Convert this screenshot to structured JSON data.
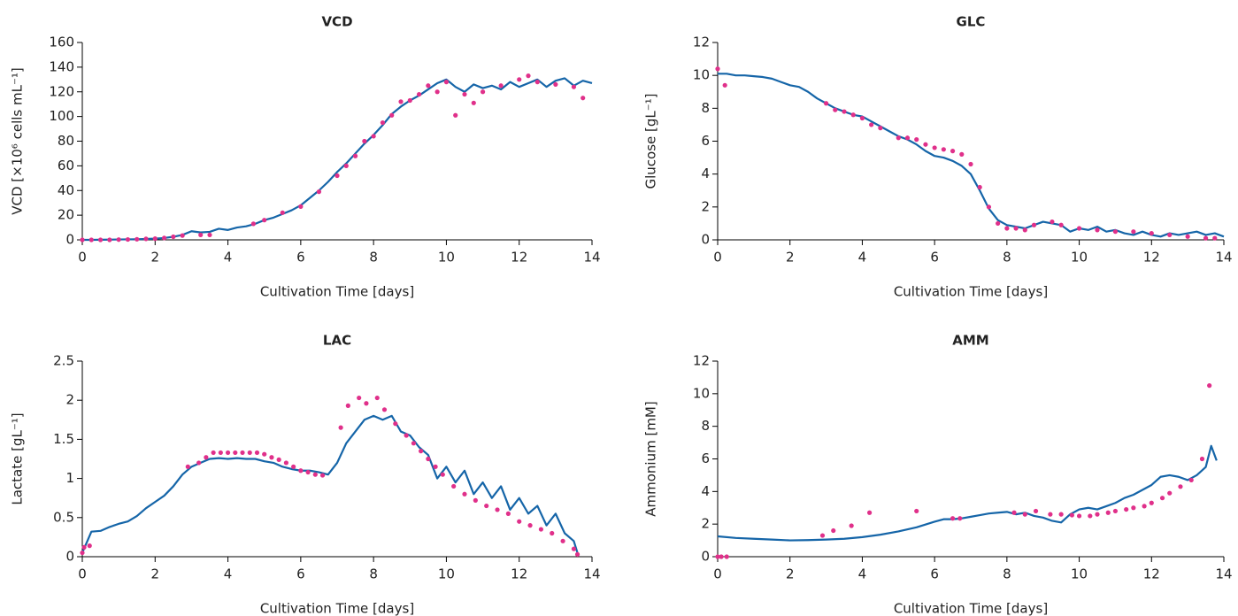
{
  "chart_data": [
    {
      "type": "line",
      "title": "VCD",
      "x_label": "Cultivation Time [days]",
      "y_label": "VCD [×10⁶ cells mL⁻¹]",
      "xlim": [
        0,
        14
      ],
      "xticks": [
        0,
        2,
        4,
        6,
        8,
        10,
        12,
        14
      ],
      "ylim": [
        0,
        160
      ],
      "yticks": [
        0,
        20,
        40,
        60,
        80,
        100,
        120,
        140,
        160
      ],
      "series": [
        {
          "type": "line",
          "color": "#1565a8",
          "x": [
            0,
            0.25,
            0.5,
            0.75,
            1,
            1.25,
            1.5,
            1.75,
            2,
            2.25,
            2.5,
            2.75,
            3,
            3.25,
            3.5,
            3.75,
            4,
            4.25,
            4.5,
            4.75,
            5,
            5.25,
            5.5,
            5.75,
            6,
            6.25,
            6.5,
            6.75,
            7,
            7.25,
            7.5,
            7.75,
            8,
            8.25,
            8.5,
            8.75,
            9,
            9.25,
            9.5,
            9.75,
            10,
            10.25,
            10.5,
            10.75,
            11,
            11.25,
            11.5,
            11.75,
            12,
            12.25,
            12.5,
            12.75,
            13,
            13.25,
            13.5,
            13.75,
            14
          ],
          "values": [
            0,
            0,
            0.1,
            0.2,
            0.3,
            0.4,
            0.5,
            0.7,
            1,
            1.5,
            2.5,
            4,
            7,
            6,
            6.5,
            9,
            8,
            10,
            11,
            13,
            16,
            18,
            21,
            24,
            28,
            34,
            40,
            47,
            55,
            62,
            70,
            78,
            85,
            93,
            102,
            108,
            113,
            117,
            122,
            127,
            130,
            124,
            120,
            126,
            123,
            125,
            122,
            128,
            124,
            127,
            130,
            124,
            129,
            131,
            125,
            129,
            127
          ]
        },
        {
          "type": "scatter",
          "color": "#e0308a",
          "x": [
            0,
            0.25,
            0.5,
            0.75,
            1,
            1.25,
            1.5,
            1.75,
            2,
            2.25,
            2.5,
            2.75,
            3.25,
            3.5,
            4.7,
            5,
            5.5,
            6,
            6.5,
            7,
            7.25,
            7.5,
            7.75,
            8,
            8.25,
            8.5,
            8.75,
            9,
            9.25,
            9.5,
            9.75,
            10,
            10.25,
            10.5,
            10.75,
            11,
            11.5,
            12,
            12.25,
            12.5,
            13,
            13.5,
            13.75
          ],
          "values": [
            0,
            0,
            0,
            0,
            0.2,
            0.3,
            0.5,
            0.8,
            1,
            1.5,
            2.5,
            3.5,
            4,
            4,
            13,
            16,
            22,
            27,
            39,
            52,
            60,
            68,
            80,
            84,
            95,
            101,
            112,
            113,
            118,
            125,
            120,
            128,
            101,
            118,
            111,
            120,
            125,
            130,
            133,
            128,
            126,
            124,
            115
          ]
        }
      ]
    },
    {
      "type": "line",
      "title": "GLC",
      "x_label": "Cultivation Time [days]",
      "y_label": "Glucose [gL⁻¹]",
      "xlim": [
        0,
        14
      ],
      "xticks": [
        0,
        2,
        4,
        6,
        8,
        10,
        12,
        14
      ],
      "ylim": [
        0,
        12
      ],
      "yticks": [
        0,
        2,
        4,
        6,
        8,
        10,
        12
      ],
      "series": [
        {
          "type": "line",
          "color": "#1565a8",
          "x": [
            0,
            0.25,
            0.5,
            0.75,
            1,
            1.25,
            1.5,
            1.75,
            2,
            2.25,
            2.5,
            2.75,
            3,
            3.25,
            3.5,
            3.75,
            4,
            4.25,
            4.5,
            4.75,
            5,
            5.25,
            5.5,
            5.75,
            6,
            6.25,
            6.5,
            6.75,
            7,
            7.25,
            7.5,
            7.75,
            8,
            8.25,
            8.5,
            8.75,
            9,
            9.25,
            9.5,
            9.75,
            10,
            10.25,
            10.5,
            10.75,
            11,
            11.25,
            11.5,
            11.75,
            12,
            12.25,
            12.5,
            12.75,
            13,
            13.25,
            13.5,
            13.75,
            14
          ],
          "values": [
            10.1,
            10.1,
            10.0,
            10.0,
            9.95,
            9.9,
            9.8,
            9.6,
            9.4,
            9.3,
            9.0,
            8.6,
            8.3,
            8.0,
            7.8,
            7.6,
            7.5,
            7.2,
            6.9,
            6.6,
            6.3,
            6.1,
            5.8,
            5.4,
            5.1,
            5.0,
            4.8,
            4.5,
            4.0,
            3.0,
            1.9,
            1.2,
            0.9,
            0.8,
            0.7,
            0.9,
            1.1,
            1.0,
            0.9,
            0.5,
            0.7,
            0.6,
            0.8,
            0.5,
            0.6,
            0.4,
            0.3,
            0.5,
            0.3,
            0.2,
            0.4,
            0.3,
            0.4,
            0.5,
            0.3,
            0.4,
            0.2
          ]
        },
        {
          "type": "scatter",
          "color": "#e0308a",
          "x": [
            0,
            0.2,
            3,
            3.25,
            3.5,
            3.75,
            4,
            4.25,
            4.5,
            5,
            5.25,
            5.5,
            5.75,
            6,
            6.25,
            6.5,
            6.75,
            7,
            7.25,
            7.5,
            7.75,
            8,
            8.25,
            8.5,
            8.75,
            9.25,
            9.5,
            10,
            10.5,
            11,
            11.5,
            12,
            12.5,
            13,
            13.5,
            13.75
          ],
          "values": [
            10.4,
            9.4,
            8.3,
            7.9,
            7.8,
            7.6,
            7.4,
            7.0,
            6.8,
            6.2,
            6.2,
            6.1,
            5.8,
            5.6,
            5.5,
            5.4,
            5.2,
            4.6,
            3.2,
            2.0,
            1.0,
            0.7,
            0.7,
            0.6,
            0.9,
            1.1,
            0.9,
            0.7,
            0.6,
            0.5,
            0.5,
            0.4,
            0.3,
            0.2,
            0.1,
            0.1
          ]
        }
      ]
    },
    {
      "type": "line",
      "title": "LAC",
      "x_label": "Cultivation Time [days]",
      "y_label": "Lactate [gL⁻¹]",
      "xlim": [
        0,
        14
      ],
      "xticks": [
        0,
        2,
        4,
        6,
        8,
        10,
        12,
        14
      ],
      "ylim": [
        0,
        2.5
      ],
      "yticks": [
        0,
        0.5,
        1,
        1.5,
        2,
        2.5
      ],
      "series": [
        {
          "type": "line",
          "color": "#1565a8",
          "x": [
            0,
            0.25,
            0.5,
            0.75,
            1,
            1.25,
            1.5,
            1.75,
            2,
            2.25,
            2.5,
            2.75,
            3,
            3.25,
            3.5,
            3.75,
            4,
            4.25,
            4.5,
            4.75,
            5,
            5.25,
            5.5,
            5.75,
            6,
            6.25,
            6.5,
            6.75,
            7,
            7.25,
            7.5,
            7.75,
            8,
            8.25,
            8.5,
            8.75,
            9,
            9.25,
            9.5,
            9.75,
            10,
            10.25,
            10.5,
            10.75,
            11,
            11.25,
            11.5,
            11.75,
            12,
            12.25,
            12.5,
            12.75,
            13,
            13.25,
            13.5,
            13.6
          ],
          "values": [
            0.05,
            0.32,
            0.33,
            0.38,
            0.42,
            0.45,
            0.52,
            0.62,
            0.7,
            0.78,
            0.9,
            1.05,
            1.15,
            1.2,
            1.25,
            1.26,
            1.25,
            1.26,
            1.25,
            1.25,
            1.22,
            1.2,
            1.15,
            1.12,
            1.1,
            1.1,
            1.08,
            1.05,
            1.2,
            1.45,
            1.6,
            1.75,
            1.8,
            1.75,
            1.8,
            1.6,
            1.55,
            1.4,
            1.3,
            1.0,
            1.15,
            0.95,
            1.1,
            0.8,
            0.95,
            0.75,
            0.9,
            0.6,
            0.75,
            0.55,
            0.65,
            0.4,
            0.55,
            0.3,
            0.2,
            0.05
          ]
        },
        {
          "type": "scatter",
          "color": "#e0308a",
          "x": [
            0,
            0.05,
            0.2,
            2.9,
            3.2,
            3.4,
            3.6,
            3.8,
            4,
            4.2,
            4.4,
            4.6,
            4.8,
            5,
            5.2,
            5.4,
            5.6,
            5.8,
            6,
            6.2,
            6.4,
            6.6,
            7.1,
            7.3,
            7.6,
            7.8,
            8.1,
            8.3,
            8.6,
            8.9,
            9.1,
            9.3,
            9.5,
            9.7,
            9.9,
            10.2,
            10.5,
            10.8,
            11.1,
            11.4,
            11.7,
            12,
            12.3,
            12.6,
            12.9,
            13.2,
            13.5,
            13.6
          ],
          "values": [
            0.05,
            0.12,
            0.14,
            1.15,
            1.2,
            1.27,
            1.33,
            1.33,
            1.33,
            1.33,
            1.33,
            1.33,
            1.33,
            1.31,
            1.27,
            1.24,
            1.2,
            1.15,
            1.1,
            1.08,
            1.05,
            1.04,
            1.65,
            1.93,
            2.03,
            1.96,
            2.03,
            1.88,
            1.7,
            1.55,
            1.45,
            1.35,
            1.25,
            1.15,
            1.05,
            0.9,
            0.8,
            0.72,
            0.65,
            0.6,
            0.55,
            0.45,
            0.4,
            0.35,
            0.3,
            0.2,
            0.1,
            0.03
          ]
        }
      ]
    },
    {
      "type": "line",
      "title": "AMM",
      "x_label": "Cultivation Time [days]",
      "y_label": "Ammonium [mM]",
      "xlim": [
        0,
        14
      ],
      "xticks": [
        0,
        2,
        4,
        6,
        8,
        10,
        12,
        14
      ],
      "ylim": [
        0,
        12
      ],
      "yticks": [
        0,
        2,
        4,
        6,
        8,
        10,
        12
      ],
      "series": [
        {
          "type": "line",
          "color": "#1565a8",
          "x": [
            0,
            0.5,
            1,
            1.5,
            2,
            2.5,
            3,
            3.5,
            4,
            4.5,
            5,
            5.5,
            6,
            6.25,
            6.5,
            6.75,
            7,
            7.25,
            7.5,
            7.75,
            8,
            8.25,
            8.5,
            8.75,
            9,
            9.25,
            9.5,
            9.75,
            10,
            10.25,
            10.5,
            10.75,
            11,
            11.25,
            11.5,
            11.75,
            12,
            12.25,
            12.5,
            12.75,
            13,
            13.25,
            13.5,
            13.65,
            13.8
          ],
          "values": [
            1.25,
            1.15,
            1.1,
            1.05,
            1.0,
            1.02,
            1.05,
            1.1,
            1.2,
            1.35,
            1.55,
            1.8,
            2.15,
            2.3,
            2.3,
            2.35,
            2.45,
            2.55,
            2.65,
            2.7,
            2.75,
            2.6,
            2.7,
            2.5,
            2.4,
            2.2,
            2.1,
            2.6,
            2.9,
            3.0,
            2.9,
            3.1,
            3.3,
            3.6,
            3.8,
            4.1,
            4.4,
            4.9,
            5.0,
            4.9,
            4.7,
            5.0,
            5.5,
            6.8,
            5.9
          ]
        },
        {
          "type": "scatter",
          "color": "#e0308a",
          "x": [
            0,
            0.1,
            0.25,
            2.9,
            3.2,
            3.7,
            4.2,
            5.5,
            6.5,
            6.7,
            8.2,
            8.5,
            8.8,
            9.2,
            9.5,
            9.8,
            10,
            10.3,
            10.5,
            10.8,
            11,
            11.3,
            11.5,
            11.8,
            12,
            12.3,
            12.5,
            12.8,
            13.1,
            13.4,
            13.6
          ],
          "values": [
            0,
            0,
            0,
            1.3,
            1.6,
            1.9,
            2.7,
            2.8,
            2.35,
            2.35,
            2.7,
            2.6,
            2.8,
            2.6,
            2.6,
            2.55,
            2.5,
            2.5,
            2.6,
            2.7,
            2.8,
            2.9,
            3.0,
            3.1,
            3.3,
            3.6,
            3.9,
            4.3,
            4.7,
            6.0,
            10.5
          ]
        }
      ]
    }
  ]
}
